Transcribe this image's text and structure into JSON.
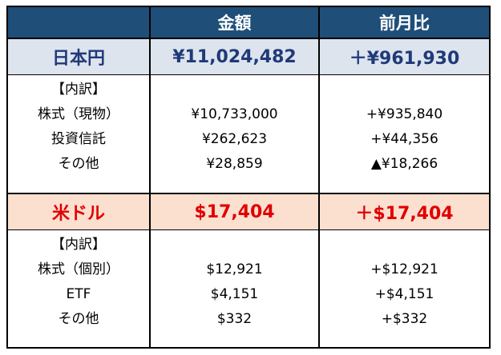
{
  "header": {
    "amount_label": "金額",
    "change_label": "前月比"
  },
  "jpy": {
    "title": "日本円",
    "total": "¥11,024,482",
    "change": "＋¥961,930",
    "breakdown_label": "【内訳】",
    "items": [
      {
        "label": "株式（現物）",
        "amount": "¥10,733,000",
        "change": "+¥935,840"
      },
      {
        "label": "投資信託",
        "amount": "¥262,623",
        "change": "+¥44,356"
      },
      {
        "label": "その他",
        "amount": "¥28,859",
        "change": "▲¥18,266"
      }
    ]
  },
  "usd": {
    "title": "米ドル",
    "total": "$17,404",
    "change": "＋$17,404",
    "breakdown_label": "【内訳】",
    "items": [
      {
        "label": "株式（個別）",
        "amount": "$12,921",
        "change": "+$12,921"
      },
      {
        "label": "ETF",
        "amount": "$4,151",
        "change": "+$4,151"
      },
      {
        "label": "その他",
        "amount": "$332",
        "change": "+$332"
      }
    ]
  },
  "colors": {
    "header_bg": "#1f4e79",
    "jpy_bg": "#dde4ee",
    "jpy_text": "#1f3a78",
    "usd_bg": "#fbe0d0",
    "usd_text": "#e00000"
  }
}
